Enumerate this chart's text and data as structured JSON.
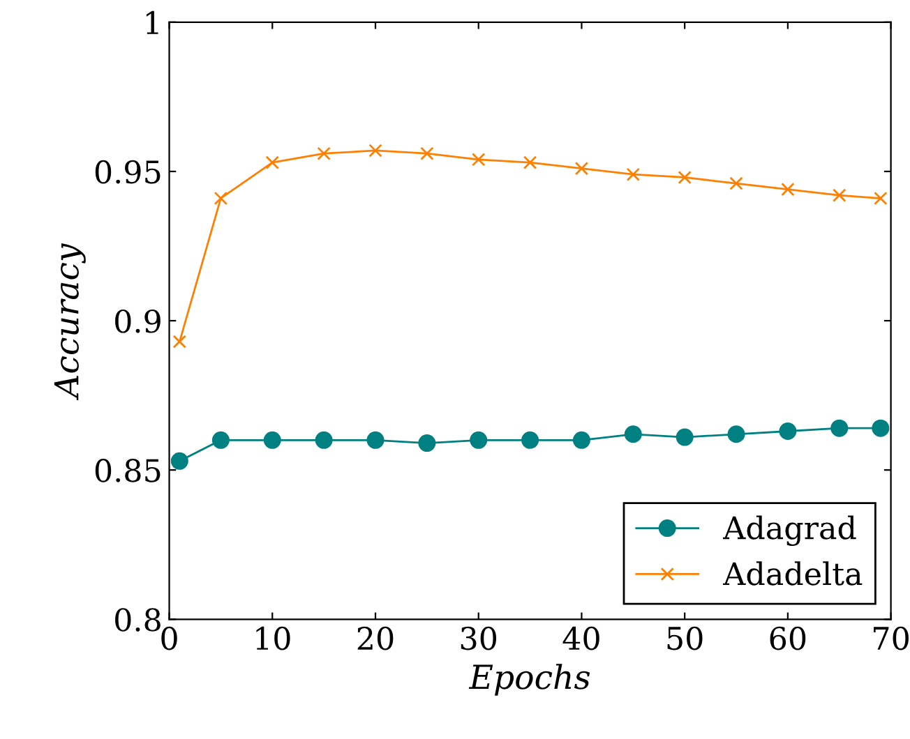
{
  "chart_data": {
    "type": "line",
    "xlabel": "Epochs",
    "ylabel": "Accuracy",
    "xlim": [
      0,
      70
    ],
    "ylim": [
      0.8,
      1
    ],
    "xticks": [
      0,
      10,
      20,
      30,
      40,
      50,
      60,
      70
    ],
    "yticks": [
      {
        "value": 0.8,
        "label": "0.8"
      },
      {
        "value": 0.85,
        "label": "0.85"
      },
      {
        "value": 0.9,
        "label": "0.9"
      },
      {
        "value": 0.95,
        "label": "0.95"
      },
      {
        "value": 1,
        "label": "1"
      }
    ],
    "x": [
      1,
      5,
      10,
      15,
      20,
      25,
      30,
      35,
      40,
      45,
      50,
      55,
      60,
      65,
      69
    ],
    "series": [
      {
        "name": "Adagrad",
        "color": "#008080",
        "marker": "circle",
        "values": [
          0.853,
          0.86,
          0.86,
          0.86,
          0.86,
          0.859,
          0.86,
          0.86,
          0.86,
          0.862,
          0.861,
          0.862,
          0.863,
          0.864,
          0.864
        ]
      },
      {
        "name": "Adadelta",
        "color": "#ff8000",
        "marker": "cross",
        "values": [
          0.893,
          0.941,
          0.953,
          0.956,
          0.957,
          0.956,
          0.954,
          0.953,
          0.951,
          0.949,
          0.948,
          0.946,
          0.944,
          0.942,
          0.941
        ]
      }
    ],
    "legend": "bottom right",
    "grid": false
  }
}
